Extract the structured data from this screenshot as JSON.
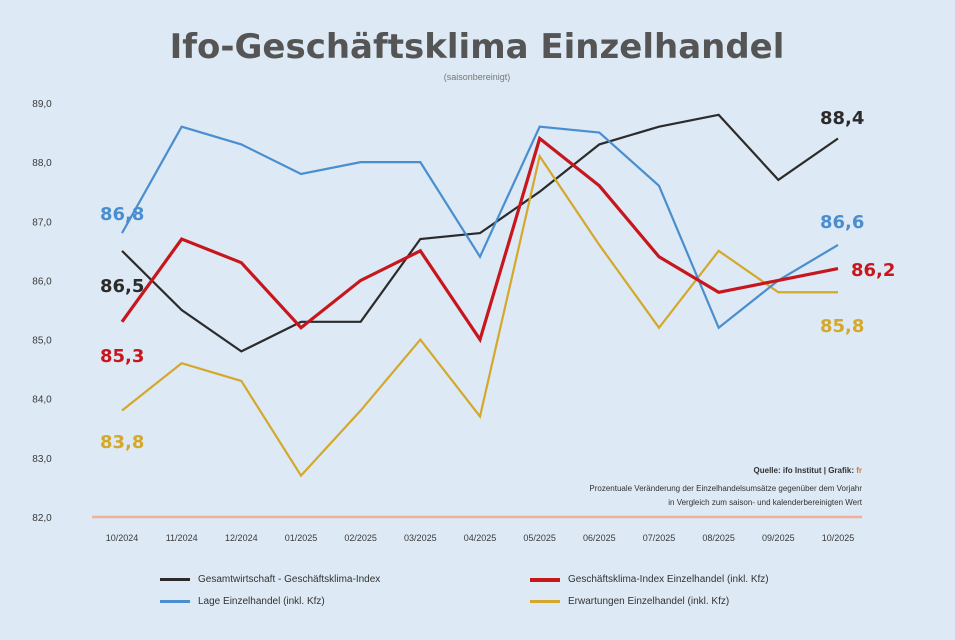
{
  "chart_data": {
    "type": "line",
    "title": "Ifo-Geschäftsklima Einzelhandel",
    "subtitle": "(saisonbereinigt)",
    "ylim": [
      82,
      89
    ],
    "yticks": [
      "89,0",
      "88,0",
      "87,0",
      "86,0",
      "85,0",
      "84,0",
      "83,0",
      "82,0"
    ],
    "ytick_values": [
      89,
      88,
      87,
      86,
      85,
      84,
      83,
      82
    ],
    "categories": [
      "10/2024",
      "11/2024",
      "12/2024",
      "01/2025",
      "02/2025",
      "03/2025",
      "04/2025",
      "05/2025",
      "06/2025",
      "07/2025",
      "08/2025",
      "09/2025",
      "10/2025"
    ],
    "series": [
      {
        "name": "Gesamtwirtschaft - Geschäftsklima-Index",
        "color": "#2b2b2b",
        "width": 2.2,
        "values": [
          86.5,
          85.5,
          84.8,
          85.3,
          85.3,
          86.7,
          86.8,
          87.5,
          88.3,
          88.6,
          88.8,
          87.7,
          88.4
        ],
        "start_label": "86,5",
        "end_label": "88,4"
      },
      {
        "name": "Geschäftsklima-Index Einzelhandel (inkl. Kfz)",
        "color": "#c8161d",
        "width": 3.2,
        "values": [
          85.3,
          86.7,
          86.3,
          85.2,
          86.0,
          86.5,
          85.0,
          88.4,
          87.6,
          86.4,
          85.8,
          86.0,
          86.2
        ],
        "start_label": "85,3",
        "end_label": "86,2"
      },
      {
        "name": "Lage Einzelhandel (inkl. Kfz)",
        "color": "#4a8ed0",
        "width": 2.2,
        "values": [
          86.8,
          88.6,
          88.3,
          87.8,
          88.0,
          88.0,
          86.4,
          88.6,
          88.5,
          87.6,
          85.2,
          86.0,
          86.6
        ],
        "start_label": "86,8",
        "end_label": "86,6"
      },
      {
        "name": "Erwartungen Einzelhandel (inkl. Kfz)",
        "color": "#d4a82a",
        "width": 2.2,
        "values": [
          83.8,
          84.6,
          84.3,
          82.7,
          83.8,
          85.0,
          83.7,
          88.1,
          86.6,
          85.2,
          86.5,
          85.8,
          85.8
        ],
        "start_label": "83,8",
        "end_label": "85,8"
      }
    ],
    "source_lines": [
      "Quelle: ifo Institut | Grafik:",
      "Prozentuale Veränderung der Einzelhandelsumsätze gegenüber dem Vorjahr",
      "in Vergleich zum saison- und kalenderbereinigten Wert"
    ],
    "source_accent": "fr"
  },
  "colors": {
    "background": "#dde9f4",
    "baseline": "#f1b09a",
    "gridline": "#c9d8e6"
  }
}
